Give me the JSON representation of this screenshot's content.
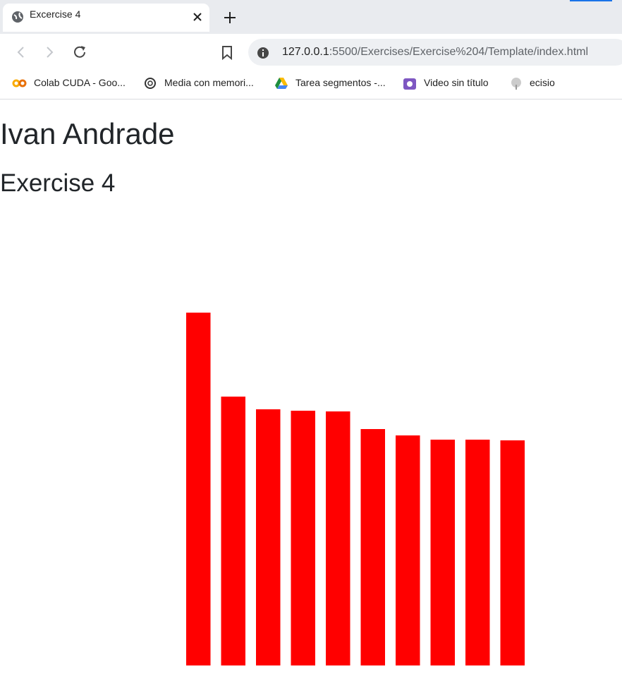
{
  "browser": {
    "tab_title": "Excercise 4",
    "url_host": "127.0.0.1",
    "url_rest": ":5500/Exercises/Exercise%204/Template/index.html",
    "bookmarks": [
      "Colab CUDA - Goo...",
      "Media con memori...",
      "Tarea segmentos -...",
      "Video sin título",
      "ecisio"
    ]
  },
  "page": {
    "heading": "Ivan Andrade",
    "subheading": "Exercise 4"
  },
  "chart_data": {
    "type": "bar",
    "values": [
      500,
      381,
      363,
      361,
      360,
      335,
      326,
      320,
      320,
      319
    ],
    "color": "#ff0000"
  }
}
